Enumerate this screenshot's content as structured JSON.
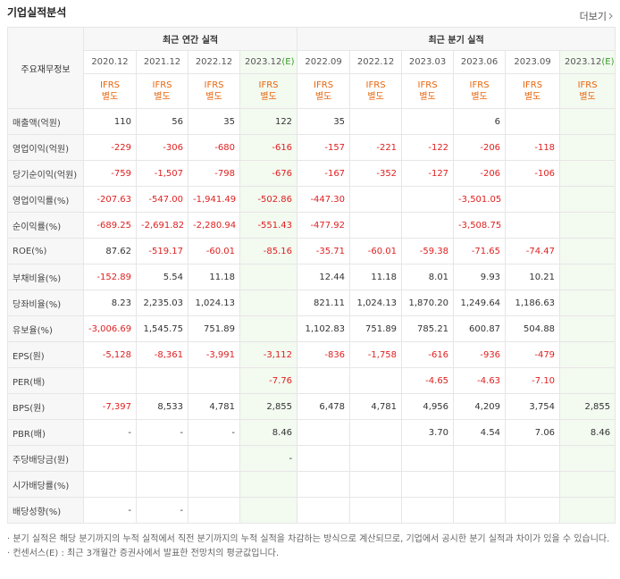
{
  "header": {
    "title": "기업실적분석",
    "more": "더보기"
  },
  "table": {
    "row_header": "주요재무정보",
    "groups": [
      {
        "label": "최근 연간 실적",
        "columns": [
          {
            "period": "2020.12",
            "standard": "IFRS",
            "basis": "별도"
          },
          {
            "period": "2021.12",
            "standard": "IFRS",
            "basis": "별도"
          },
          {
            "period": "2022.12",
            "standard": "IFRS",
            "basis": "별도"
          },
          {
            "period": "2023.12",
            "estimate": "(E)",
            "standard": "IFRS",
            "basis": "별도"
          }
        ]
      },
      {
        "label": "최근 분기 실적",
        "columns": [
          {
            "period": "2022.09",
            "standard": "IFRS",
            "basis": "별도"
          },
          {
            "period": "2022.12",
            "standard": "IFRS",
            "basis": "별도"
          },
          {
            "period": "2023.03",
            "standard": "IFRS",
            "basis": "별도"
          },
          {
            "period": "2023.06",
            "standard": "IFRS",
            "basis": "별도"
          },
          {
            "period": "2023.09",
            "standard": "IFRS",
            "basis": "별도"
          },
          {
            "period": "2023.12",
            "estimate": "(E)",
            "standard": "IFRS",
            "basis": "별도"
          }
        ]
      }
    ],
    "rows": [
      {
        "label": "매출액(억원)",
        "values": [
          "110",
          "56",
          "35",
          "122",
          "35",
          null,
          null,
          "6",
          null,
          null
        ]
      },
      {
        "label": "영업이익(억원)",
        "values": [
          "-229",
          "-306",
          "-680",
          "-616",
          "-157",
          "-221",
          "-122",
          "-206",
          "-118",
          null
        ]
      },
      {
        "label": "당기순이익(억원)",
        "values": [
          "-759",
          "-1,507",
          "-798",
          "-676",
          "-167",
          "-352",
          "-127",
          "-206",
          "-106",
          null
        ]
      },
      {
        "label": "영업이익률(%)",
        "values": [
          "-207.63",
          "-547.00",
          "-1,941.49",
          "-502.86",
          "-447.30",
          null,
          null,
          "-3,501.05",
          null,
          null
        ]
      },
      {
        "label": "순이익률(%)",
        "values": [
          "-689.25",
          "-2,691.82",
          "-2,280.94",
          "-551.43",
          "-477.92",
          null,
          null,
          "-3,508.75",
          null,
          null
        ]
      },
      {
        "label": "ROE(%)",
        "values": [
          "87.62",
          "-519.17",
          "-60.01",
          "-85.16",
          "-35.71",
          "-60.01",
          "-59.38",
          "-71.65",
          "-74.47",
          null
        ]
      },
      {
        "label": "부채비율(%)",
        "values": [
          "-152.89",
          "5.54",
          "11.18",
          null,
          "12.44",
          "11.18",
          "8.01",
          "9.93",
          "10.21",
          null
        ]
      },
      {
        "label": "당좌비율(%)",
        "values": [
          "8.23",
          "2,235.03",
          "1,024.13",
          null,
          "821.11",
          "1,024.13",
          "1,870.20",
          "1,249.64",
          "1,186.63",
          null
        ]
      },
      {
        "label": "유보율(%)",
        "values": [
          "-3,006.69",
          "1,545.75",
          "751.89",
          null,
          "1,102.83",
          "751.89",
          "785.21",
          "600.87",
          "504.88",
          null
        ]
      },
      {
        "label": "EPS(원)",
        "values": [
          "-5,128",
          "-8,361",
          "-3,991",
          "-3,112",
          "-836",
          "-1,758",
          "-616",
          "-936",
          "-479",
          null
        ]
      },
      {
        "label": "PER(배)",
        "values": [
          null,
          null,
          null,
          "-7.76",
          null,
          null,
          "-4.65",
          "-4.63",
          "-7.10",
          null
        ]
      },
      {
        "label": "BPS(원)",
        "values": [
          "-7,397",
          "8,533",
          "4,781",
          "2,855",
          "6,478",
          "4,781",
          "4,956",
          "4,209",
          "3,754",
          "2,855"
        ]
      },
      {
        "label": "PBR(배)",
        "values": [
          "-",
          "-",
          "-",
          "8.46",
          null,
          null,
          "3.70",
          "4.54",
          "7.06",
          "8.46"
        ]
      },
      {
        "label": "주당배당금(원)",
        "values": [
          null,
          null,
          null,
          "-",
          null,
          null,
          null,
          null,
          null,
          null
        ]
      },
      {
        "label": "시가배당률(%)",
        "values": [
          null,
          null,
          null,
          null,
          null,
          null,
          null,
          null,
          null,
          null
        ]
      },
      {
        "label": "배당성향(%)",
        "values": [
          "-",
          "-",
          null,
          null,
          null,
          null,
          null,
          null,
          null,
          null
        ]
      }
    ]
  },
  "notes": [
    "· 분기 실적은 해당 분기까지의 누적 실적에서 직전 분기까지의 누적 실적을 차감하는 방식으로 계산되므로, 기업에서 공시한 분기 실적과 차이가 있을 수 있습니다.",
    "· 컨센서스(E) : 최근 3개월간 증권사에서 발표한 전망치의 평균값입니다."
  ]
}
